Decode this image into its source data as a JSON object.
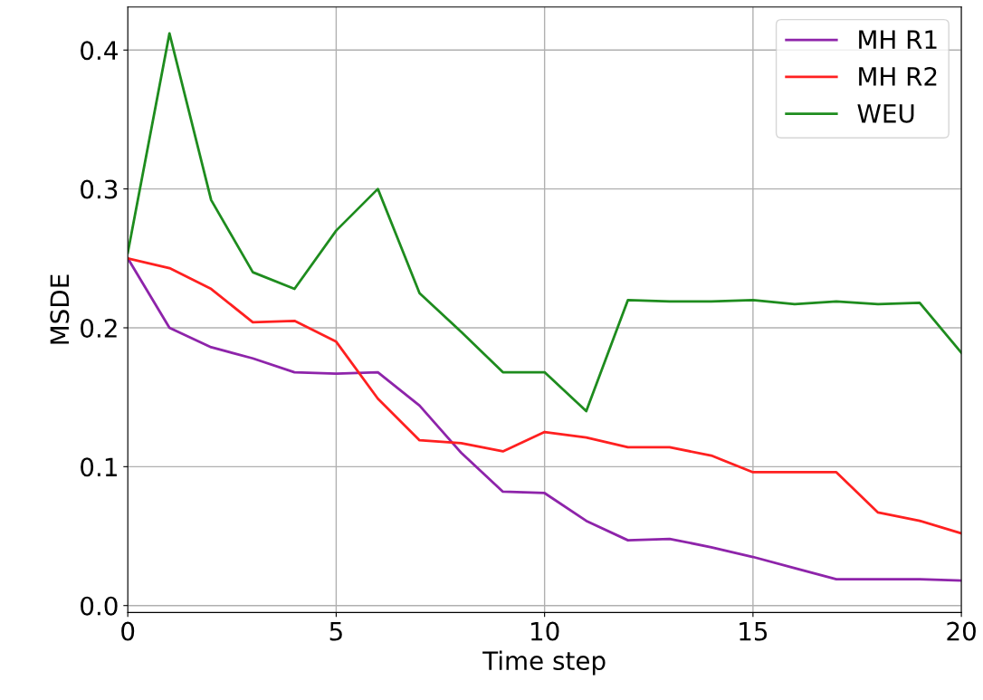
{
  "chart_data": {
    "type": "line",
    "xlabel": "Time step",
    "ylabel": "MSDE",
    "x": [
      0,
      1,
      2,
      3,
      4,
      5,
      6,
      7,
      8,
      9,
      10,
      11,
      12,
      13,
      14,
      15,
      16,
      17,
      18,
      19,
      20
    ],
    "series": [
      {
        "name": "MH R1",
        "color": "#8e24aa",
        "values": [
          0.25,
          0.2,
          0.186,
          0.178,
          0.168,
          0.167,
          0.168,
          0.144,
          0.11,
          0.082,
          0.081,
          0.061,
          0.047,
          0.048,
          0.042,
          0.035,
          0.027,
          0.019,
          0.019,
          0.019,
          0.018
        ]
      },
      {
        "name": "MH R2",
        "color": "#ff2020",
        "values": [
          0.25,
          0.243,
          0.228,
          0.204,
          0.205,
          0.19,
          0.149,
          0.119,
          0.117,
          0.111,
          0.125,
          0.121,
          0.114,
          0.114,
          0.108,
          0.096,
          0.096,
          0.096,
          0.067,
          0.061,
          0.052
        ]
      },
      {
        "name": "WEU",
        "color": "#1e8c1e",
        "values": [
          0.254,
          0.412,
          0.292,
          0.24,
          0.228,
          0.27,
          0.3,
          0.225,
          0.197,
          0.168,
          0.168,
          0.14,
          0.22,
          0.219,
          0.219,
          0.22,
          0.217,
          0.219,
          0.217,
          0.218,
          0.182
        ]
      }
    ],
    "xlim": [
      0,
      20
    ],
    "xticks": [
      0,
      5,
      10,
      15,
      20
    ],
    "ylim": [
      -0.005,
      0.431
    ],
    "yticks": [
      {
        "value": 0,
        "label": "0.0"
      },
      0.1,
      0.2,
      0.3,
      0.4
    ],
    "grid": true,
    "legend": "top right",
    "marker": "none",
    "line_style": "solid"
  }
}
